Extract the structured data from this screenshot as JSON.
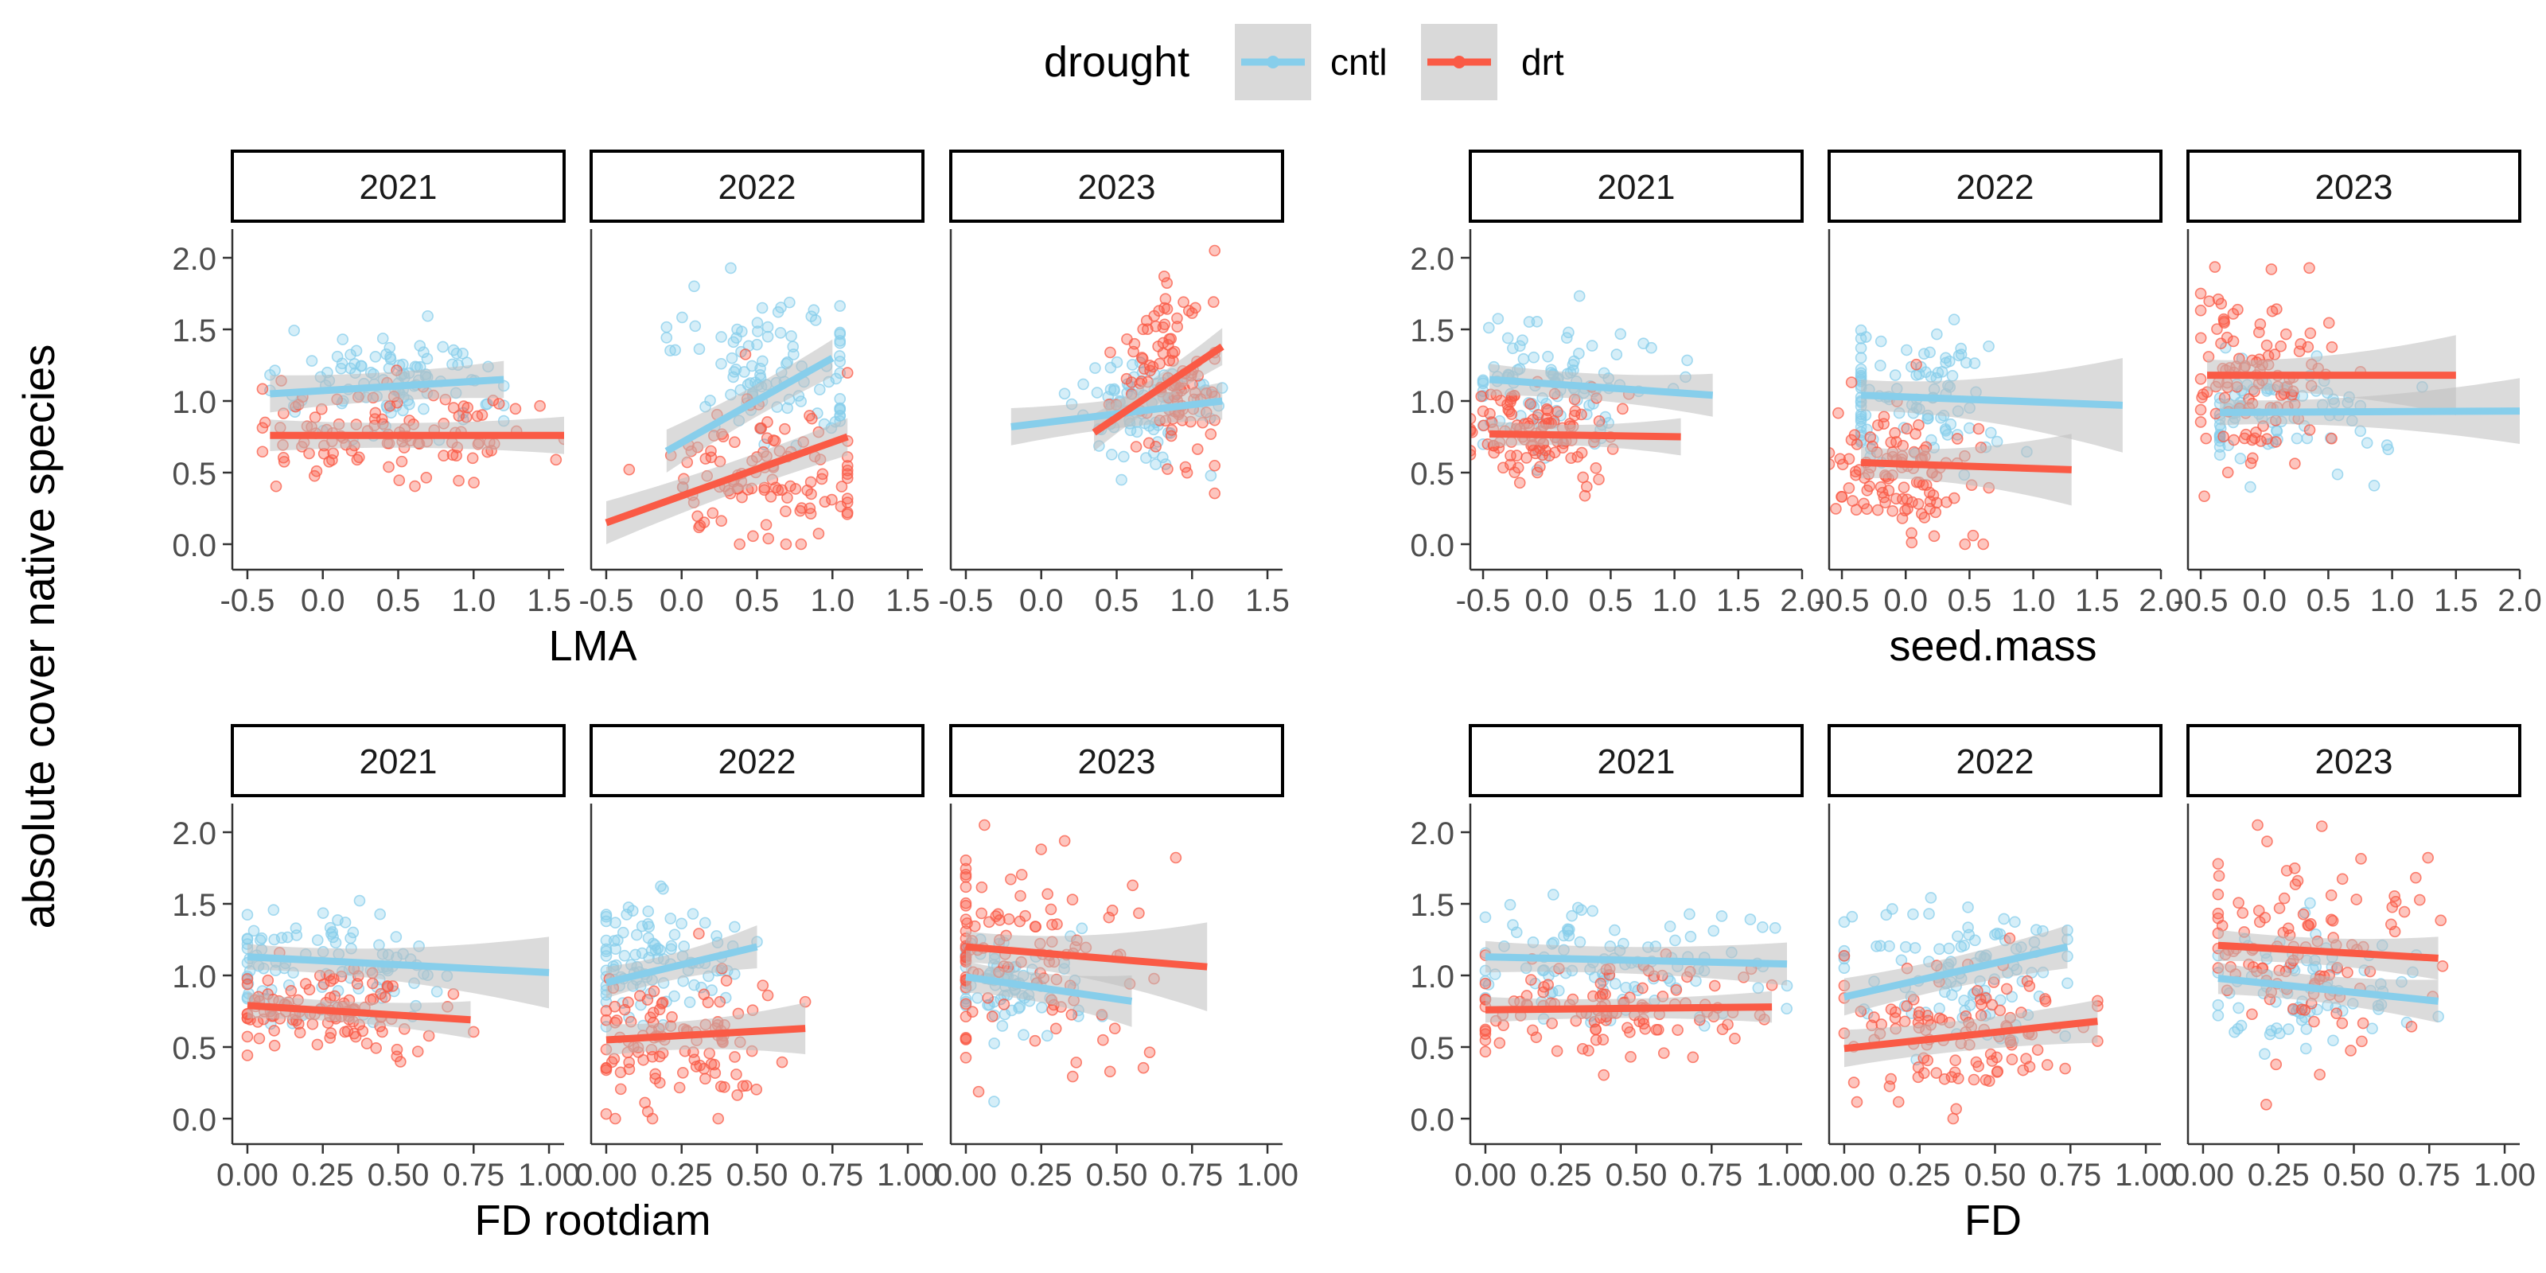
{
  "legend": {
    "title": "drought",
    "items": [
      {
        "label": "cntl",
        "color": "#87CEEB"
      },
      {
        "label": "drt",
        "color": "#FA5A45"
      }
    ]
  },
  "ylabel": "absolute cover native species",
  "colors": {
    "cntl": "#87CEEB",
    "drt": "#FA5A45",
    "ribbon": "#BEBEBE",
    "axis": "#333333",
    "strip_border": "#000000"
  },
  "chart_data": [
    {
      "type": "scatter",
      "xlabel": "LMA",
      "ylim": [
        -0.1,
        2.2
      ],
      "yticks": [
        0.0,
        0.5,
        1.0,
        1.5,
        2.0
      ],
      "xlim": [
        -0.6,
        1.6
      ],
      "xticks": [
        -0.5,
        0.0,
        0.5,
        1.0,
        1.5
      ],
      "panels": [
        {
          "strip": "2021",
          "fits": [
            {
              "series": "cntl",
              "x": [
                -0.35,
                1.2
              ],
              "y": [
                1.05,
                1.15
              ],
              "se": [
                0.1,
                0.1
              ]
            },
            {
              "series": "drt",
              "x": [
                -0.35,
                1.6
              ],
              "y": [
                0.76,
                0.76
              ],
              "se": [
                0.08,
                0.1
              ]
            }
          ],
          "cntl": {
            "xc": 0.45,
            "xs": 0.4,
            "yc": 1.1,
            "ys": 0.2,
            "n": 100,
            "xmin": -0.35,
            "xmax": 1.2
          },
          "drt": {
            "xc": 0.5,
            "xs": 0.45,
            "yc": 0.76,
            "ys": 0.17,
            "n": 110,
            "xmin": -0.4,
            "xmax": 1.6
          }
        },
        {
          "strip": "2022",
          "fits": [
            {
              "series": "cntl",
              "x": [
                -0.1,
                1.0
              ],
              "y": [
                0.65,
                1.3
              ],
              "se": [
                0.12,
                0.1
              ]
            },
            {
              "series": "drt",
              "x": [
                -0.5,
                1.1
              ],
              "y": [
                0.15,
                0.75
              ],
              "se": [
                0.12,
                0.1
              ]
            }
          ],
          "cntl": {
            "xc": 0.6,
            "xs": 0.3,
            "yc": 1.15,
            "ys": 0.25,
            "n": 100,
            "xmin": -0.1,
            "xmax": 1.05
          },
          "drt": {
            "xc": 0.55,
            "xs": 0.35,
            "yc": 0.5,
            "ys": 0.25,
            "n": 110,
            "xmin": -0.5,
            "xmax": 1.1
          }
        },
        {
          "strip": "2023",
          "fits": [
            {
              "series": "cntl",
              "x": [
                -0.2,
                1.2
              ],
              "y": [
                0.82,
                1.0
              ],
              "se": [
                0.1,
                0.1
              ]
            },
            {
              "series": "drt",
              "x": [
                0.35,
                1.2
              ],
              "y": [
                0.78,
                1.38
              ],
              "se": [
                0.1,
                0.1
              ]
            }
          ],
          "cntl": {
            "xc": 0.7,
            "xs": 0.25,
            "yc": 0.95,
            "ys": 0.2,
            "n": 80,
            "xmin": -0.2,
            "xmax": 1.2
          },
          "drt": {
            "xc": 0.85,
            "xs": 0.18,
            "yc": 1.2,
            "ys": 0.35,
            "n": 110,
            "xmin": 0.35,
            "xmax": 1.15
          }
        }
      ]
    },
    {
      "type": "scatter",
      "xlabel": "seed.mass",
      "ylim": [
        -0.1,
        2.2
      ],
      "yticks": [
        0.0,
        0.5,
        1.0,
        1.5,
        2.0
      ],
      "xlim": [
        -0.6,
        2.0
      ],
      "xticks": [
        -0.5,
        0.0,
        0.5,
        1.0,
        1.5,
        2.0
      ],
      "panels": [
        {
          "strip": "2021",
          "fits": [
            {
              "series": "cntl",
              "x": [
                -0.45,
                1.3
              ],
              "y": [
                1.15,
                1.04
              ],
              "se": [
                0.08,
                0.12
              ]
            },
            {
              "series": "drt",
              "x": [
                -0.45,
                1.05
              ],
              "y": [
                0.77,
                0.75
              ],
              "se": [
                0.06,
                0.1
              ]
            }
          ],
          "cntl": {
            "xc": 0.0,
            "xs": 0.35,
            "yc": 1.1,
            "ys": 0.2,
            "n": 100,
            "xmin": -0.5,
            "xmax": 1.3
          },
          "drt": {
            "xc": -0.1,
            "xs": 0.3,
            "yc": 0.76,
            "ys": 0.17,
            "n": 110,
            "xmin": -0.6,
            "xmax": 1.05
          }
        },
        {
          "strip": "2022",
          "fits": [
            {
              "series": "cntl",
              "x": [
                -0.35,
                1.7
              ],
              "y": [
                1.04,
                0.97
              ],
              "se": [
                0.08,
                0.3
              ]
            },
            {
              "series": "drt",
              "x": [
                -0.35,
                1.3
              ],
              "y": [
                0.57,
                0.52
              ],
              "se": [
                0.08,
                0.22
              ]
            }
          ],
          "cntl": {
            "xc": 0.1,
            "xs": 0.35,
            "yc": 1.05,
            "ys": 0.25,
            "n": 100,
            "xmin": -0.35,
            "xmax": 1.7
          },
          "drt": {
            "xc": 0.0,
            "xs": 0.3,
            "yc": 0.55,
            "ys": 0.25,
            "n": 110,
            "xmin": -0.6,
            "xmax": 1.3
          }
        },
        {
          "strip": "2023",
          "fits": [
            {
              "series": "cntl",
              "x": [
                -0.35,
                2.0
              ],
              "y": [
                0.92,
                0.93
              ],
              "se": [
                0.06,
                0.2
              ]
            },
            {
              "series": "drt",
              "x": [
                -0.45,
                1.5
              ],
              "y": [
                1.18,
                1.18
              ],
              "se": [
                0.08,
                0.25
              ]
            }
          ],
          "cntl": {
            "xc": 0.0,
            "xs": 0.4,
            "yc": 0.92,
            "ys": 0.2,
            "n": 80,
            "xmin": -0.35,
            "xmax": 2.0
          },
          "drt": {
            "xc": -0.1,
            "xs": 0.3,
            "yc": 1.18,
            "ys": 0.35,
            "n": 110,
            "xmin": -0.5,
            "xmax": 1.5
          }
        }
      ]
    },
    {
      "type": "scatter",
      "xlabel": "FD rootdiam",
      "ylim": [
        -0.1,
        2.2
      ],
      "yticks": [
        0.0,
        0.5,
        1.0,
        1.5,
        2.0
      ],
      "xlim": [
        -0.05,
        1.05
      ],
      "xticks": [
        0.0,
        0.25,
        0.5,
        0.75,
        1.0
      ],
      "xticklabels": [
        "0.00",
        "0.25",
        "0.50",
        "0.75",
        "1.00"
      ],
      "panels": [
        {
          "strip": "2021",
          "fits": [
            {
              "series": "cntl",
              "x": [
                0.0,
                1.0
              ],
              "y": [
                1.13,
                1.02
              ],
              "se": [
                0.06,
                0.22
              ]
            },
            {
              "series": "drt",
              "x": [
                0.0,
                0.74
              ],
              "y": [
                0.79,
                0.69
              ],
              "se": [
                0.06,
                0.1
              ]
            }
          ],
          "cntl": {
            "xc": 0.25,
            "xs": 0.2,
            "yc": 1.1,
            "ys": 0.2,
            "n": 100,
            "xmin": 0.0,
            "xmax": 1.0
          },
          "drt": {
            "xc": 0.25,
            "xs": 0.2,
            "yc": 0.76,
            "ys": 0.17,
            "n": 110,
            "xmin": 0.0,
            "xmax": 0.75
          }
        },
        {
          "strip": "2022",
          "fits": [
            {
              "series": "cntl",
              "x": [
                0.0,
                0.5
              ],
              "y": [
                0.95,
                1.2
              ],
              "se": [
                0.08,
                0.12
              ]
            },
            {
              "series": "drt",
              "x": [
                0.0,
                0.66
              ],
              "y": [
                0.55,
                0.63
              ],
              "se": [
                0.08,
                0.15
              ]
            }
          ],
          "cntl": {
            "xc": 0.15,
            "xs": 0.15,
            "yc": 1.1,
            "ys": 0.25,
            "n": 100,
            "xmin": 0.0,
            "xmax": 0.5
          },
          "drt": {
            "xc": 0.2,
            "xs": 0.17,
            "yc": 0.55,
            "ys": 0.25,
            "n": 110,
            "xmin": 0.0,
            "xmax": 0.66
          }
        },
        {
          "strip": "2023",
          "fits": [
            {
              "series": "cntl",
              "x": [
                0.0,
                0.55
              ],
              "y": [
                0.99,
                0.82
              ],
              "se": [
                0.08,
                0.15
              ]
            },
            {
              "series": "drt",
              "x": [
                0.0,
                0.8
              ],
              "y": [
                1.2,
                1.06
              ],
              "se": [
                0.08,
                0.28
              ]
            }
          ],
          "cntl": {
            "xc": 0.15,
            "xs": 0.15,
            "yc": 0.92,
            "ys": 0.2,
            "n": 80,
            "xmin": 0.0,
            "xmax": 0.55
          },
          "drt": {
            "xc": 0.2,
            "xs": 0.2,
            "yc": 1.18,
            "ys": 0.35,
            "n": 110,
            "xmin": 0.0,
            "xmax": 0.8
          }
        }
      ]
    },
    {
      "type": "scatter",
      "xlabel": "FD",
      "ylim": [
        -0.1,
        2.2
      ],
      "yticks": [
        0.0,
        0.5,
        1.0,
        1.5,
        2.0
      ],
      "xlim": [
        -0.05,
        1.05
      ],
      "xticks": [
        0.0,
        0.25,
        0.5,
        0.75,
        1.0
      ],
      "xticklabels": [
        "0.00",
        "0.25",
        "0.50",
        "0.75",
        "1.00"
      ],
      "panels": [
        {
          "strip": "2021",
          "fits": [
            {
              "series": "cntl",
              "x": [
                0.0,
                1.0
              ],
              "y": [
                1.13,
                1.08
              ],
              "se": [
                0.08,
                0.12
              ]
            },
            {
              "series": "drt",
              "x": [
                0.0,
                0.95
              ],
              "y": [
                0.76,
                0.78
              ],
              "se": [
                0.06,
                0.08
              ]
            }
          ],
          "cntl": {
            "xc": 0.4,
            "xs": 0.25,
            "yc": 1.1,
            "ys": 0.2,
            "n": 100,
            "xmin": 0.0,
            "xmax": 1.0
          },
          "drt": {
            "xc": 0.4,
            "xs": 0.25,
            "yc": 0.76,
            "ys": 0.17,
            "n": 110,
            "xmin": 0.0,
            "xmax": 0.95
          }
        },
        {
          "strip": "2022",
          "fits": [
            {
              "series": "cntl",
              "x": [
                0.0,
                0.74
              ],
              "y": [
                0.85,
                1.2
              ],
              "se": [
                0.1,
                0.12
              ]
            },
            {
              "series": "drt",
              "x": [
                0.0,
                0.84
              ],
              "y": [
                0.49,
                0.68
              ],
              "se": [
                0.1,
                0.12
              ]
            }
          ],
          "cntl": {
            "xc": 0.4,
            "xs": 0.2,
            "yc": 1.05,
            "ys": 0.25,
            "n": 100,
            "xmin": 0.0,
            "xmax": 0.74
          },
          "drt": {
            "xc": 0.4,
            "xs": 0.22,
            "yc": 0.55,
            "ys": 0.25,
            "n": 110,
            "xmin": 0.0,
            "xmax": 0.84
          }
        },
        {
          "strip": "2023",
          "fits": [
            {
              "series": "cntl",
              "x": [
                0.05,
                0.78
              ],
              "y": [
                0.98,
                0.82
              ],
              "se": [
                0.08,
                0.12
              ]
            },
            {
              "series": "drt",
              "x": [
                0.05,
                0.78
              ],
              "y": [
                1.21,
                1.12
              ],
              "se": [
                0.08,
                0.12
              ]
            }
          ],
          "cntl": {
            "xc": 0.35,
            "xs": 0.2,
            "yc": 0.92,
            "ys": 0.2,
            "n": 80,
            "xmin": 0.05,
            "xmax": 0.78
          },
          "drt": {
            "xc": 0.35,
            "xs": 0.22,
            "yc": 1.18,
            "ys": 0.35,
            "n": 110,
            "xmin": 0.05,
            "xmax": 0.8
          }
        }
      ]
    }
  ]
}
